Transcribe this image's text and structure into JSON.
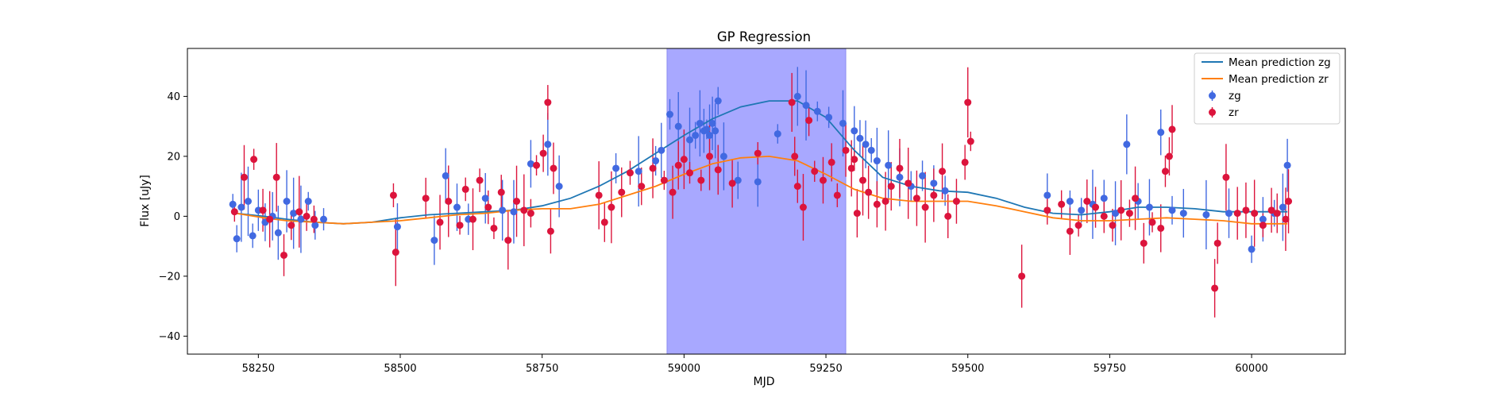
{
  "chart_data": {
    "type": "scatter",
    "title": "GP Regression",
    "xlabel": "MJD",
    "ylabel": "Flux [uJy]",
    "xlim": [
      58125,
      60165
    ],
    "ylim": [
      -46,
      56
    ],
    "xticks": [
      58250,
      58500,
      58750,
      59000,
      59250,
      59500,
      59750,
      60000
    ],
    "yticks": [
      -40,
      -20,
      0,
      20,
      40
    ],
    "grid": false,
    "legend": "top-right",
    "shaded_region": {
      "x": [
        58970,
        59285
      ],
      "color": "#a8a8ff"
    },
    "colors": {
      "zg": "#4169e1",
      "zr": "#dc143c",
      "mean_zg": "#1f77b4",
      "mean_zr": "#ff7f0e"
    },
    "series": [
      {
        "name": "Mean prediction zg",
        "kind": "line",
        "color": "#1f77b4",
        "x": [
          58210,
          58260,
          58300,
          58350,
          58400,
          58450,
          58500,
          58550,
          58600,
          58650,
          58700,
          58750,
          58800,
          58850,
          58900,
          58950,
          59000,
          59050,
          59100,
          59150,
          59200,
          59250,
          59300,
          59350,
          59400,
          59450,
          59500,
          59550,
          59600,
          59650,
          59700,
          59750,
          59800,
          59850,
          59900,
          59950,
          60000,
          60063
        ],
        "y": [
          1,
          0,
          -1,
          -2,
          -2.5,
          -2,
          -0.5,
          0.5,
          1,
          1.5,
          2,
          3.5,
          6,
          10,
          15,
          21,
          27,
          32.5,
          36.5,
          38.5,
          38.5,
          33,
          22,
          13,
          10,
          8.5,
          8,
          6,
          3,
          1,
          0.5,
          1.5,
          3,
          3,
          2.5,
          1.5,
          1.5,
          1.5
        ]
      },
      {
        "name": "Mean prediction zr",
        "kind": "line",
        "color": "#ff7f0e",
        "x": [
          58210,
          58260,
          58300,
          58350,
          58400,
          58450,
          58500,
          58550,
          58600,
          58650,
          58700,
          58750,
          58800,
          58850,
          58900,
          58950,
          59000,
          59050,
          59100,
          59150,
          59200,
          59250,
          59300,
          59350,
          59400,
          59450,
          59500,
          59550,
          59600,
          59650,
          59700,
          59750,
          59800,
          59850,
          59900,
          59950,
          60000,
          60063
        ],
        "y": [
          1,
          -0.5,
          -1.5,
          -2,
          -2.5,
          -2,
          -1.5,
          -0.5,
          0.5,
          1,
          2,
          2.5,
          2.5,
          4,
          7,
          10,
          14,
          17.5,
          19.5,
          20,
          18.5,
          14,
          9,
          6,
          5,
          5,
          5,
          3.5,
          1.5,
          -0.5,
          -1.5,
          -1.5,
          -1,
          -0.5,
          -1,
          -1.5,
          -2.5,
          -2.5
        ]
      },
      {
        "name": "zg",
        "kind": "errorbar",
        "color": "#4169e1",
        "x": [
          58205,
          58212,
          58220,
          58232,
          58240,
          58250,
          58262,
          58275,
          58285,
          58300,
          58312,
          58325,
          58338,
          58350,
          58365,
          58495,
          58560,
          58580,
          58600,
          58620,
          58650,
          58680,
          58700,
          58730,
          58760,
          58780,
          58880,
          58920,
          58950,
          58960,
          58975,
          58990,
          59010,
          59020,
          59028,
          59035,
          59040,
          59045,
          59050,
          59055,
          59060,
          59070,
          59095,
          59130,
          59165,
          59200,
          59215,
          59235,
          59255,
          59280,
          59300,
          59310,
          59320,
          59330,
          59340,
          59360,
          59380,
          59400,
          59420,
          59440,
          59460,
          59640,
          59680,
          59700,
          59720,
          59740,
          59760,
          59780,
          59800,
          59820,
          59840,
          59860,
          59880,
          59920,
          59960,
          60000,
          60020,
          60040,
          60055,
          60063
        ],
        "y": [
          4,
          -7.5,
          3,
          5,
          -6.5,
          2,
          -2,
          0,
          -5.5,
          5,
          1,
          -1,
          5,
          -3,
          -1,
          -3.5,
          -8,
          13.5,
          3,
          -1,
          6,
          2,
          1.5,
          17.5,
          24,
          10,
          16,
          15,
          18.5,
          22,
          34,
          30,
          25.5,
          27,
          31,
          28.5,
          29,
          27,
          31,
          28.5,
          38.5,
          20,
          12,
          11.5,
          27.5,
          40,
          37,
          35,
          33,
          31,
          28.5,
          26,
          24,
          22,
          18.5,
          17,
          13,
          10,
          13.5,
          11,
          8.5,
          7,
          5,
          2,
          4,
          6,
          1,
          24,
          5,
          3,
          28,
          2,
          1,
          0.5,
          1,
          -11,
          -1,
          1,
          3,
          17
        ]
      },
      {
        "name": "zr",
        "kind": "errorbar",
        "color": "#dc143c",
        "x": [
          58208,
          58225,
          58242,
          58258,
          58270,
          58282,
          58295,
          58308,
          58322,
          58335,
          58348,
          58488,
          58492,
          58545,
          58570,
          58585,
          58605,
          58615,
          58628,
          58640,
          58655,
          58665,
          58678,
          58690,
          58705,
          58718,
          58730,
          58740,
          58752,
          58760,
          58765,
          58770,
          58850,
          58860,
          58872,
          58890,
          58905,
          58925,
          58945,
          58965,
          58980,
          58990,
          59000,
          59010,
          59030,
          59045,
          59060,
          59085,
          59130,
          59190,
          59195,
          59200,
          59210,
          59220,
          59230,
          59245,
          59260,
          59270,
          59285,
          59295,
          59300,
          59305,
          59315,
          59325,
          59340,
          59355,
          59365,
          59380,
          59395,
          59410,
          59425,
          59440,
          59455,
          59465,
          59480,
          59495,
          59500,
          59505,
          59595,
          59640,
          59665,
          59680,
          59695,
          59710,
          59725,
          59740,
          59755,
          59770,
          59785,
          59795,
          59810,
          59825,
          59840,
          59848,
          59855,
          59860,
          59935,
          59940,
          59955,
          59975,
          59990,
          60005,
          60020,
          60035,
          60045,
          60060,
          60065
        ],
        "y": [
          1.5,
          13,
          19,
          2,
          -1,
          13,
          -13,
          -3,
          1.5,
          0,
          -1,
          7,
          -12,
          6,
          -2,
          5,
          -3,
          9,
          -1,
          12,
          3,
          -4,
          8,
          -8,
          5,
          2,
          1,
          17,
          21,
          38,
          -5,
          16,
          7,
          -2,
          3,
          8,
          14.5,
          10,
          16,
          12,
          8,
          17,
          19,
          14.5,
          12,
          20,
          15.5,
          11,
          21,
          38,
          20,
          10,
          3,
          32,
          15,
          12,
          18,
          7,
          22,
          16,
          19,
          1,
          12,
          8,
          4,
          5,
          10,
          16,
          11,
          6,
          3,
          7,
          15,
          0,
          5,
          18,
          38,
          25,
          -20,
          2,
          4,
          -5,
          -3,
          5,
          3,
          0,
          -3,
          2,
          1,
          6,
          -9,
          -2,
          -4,
          15,
          20,
          29,
          -24,
          -9,
          13,
          1,
          2,
          1,
          -3,
          2,
          1,
          -1,
          5
        ]
      }
    ]
  }
}
